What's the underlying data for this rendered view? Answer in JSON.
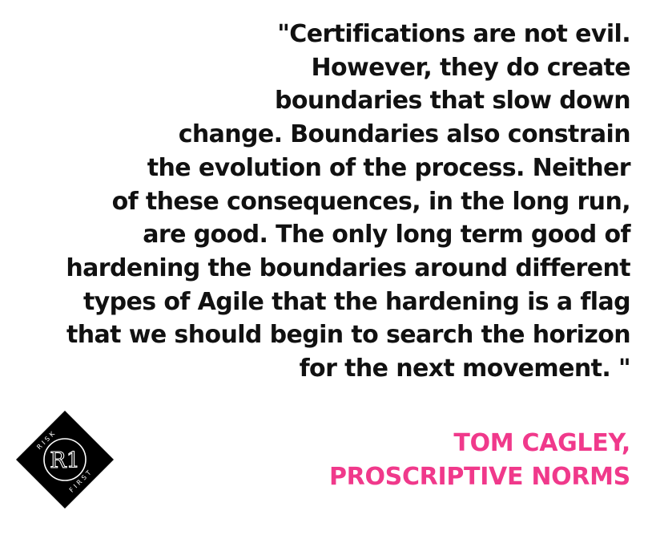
{
  "quote": {
    "lines": [
      "\"Certifications are not evil.",
      "However, they do create",
      "boundaries that slow down",
      "change. Boundaries also constrain",
      "the evolution of the process. Neither",
      "of these consequences, in the long run,",
      "are good. The only long term good of",
      "hardening the boundaries around different",
      "types of Agile that the hardening is a flag",
      "that we should begin to search the horizon",
      "for the next movement. \""
    ]
  },
  "attribution": {
    "author": "TOM CAGLEY,",
    "source": "PROSCRIPTIVE NORMS",
    "color": "#f0398b"
  },
  "logo": {
    "icon": "risk-first-logo",
    "word_top": "RISK",
    "word_bottom": "FIRST",
    "monogram": "R1"
  }
}
